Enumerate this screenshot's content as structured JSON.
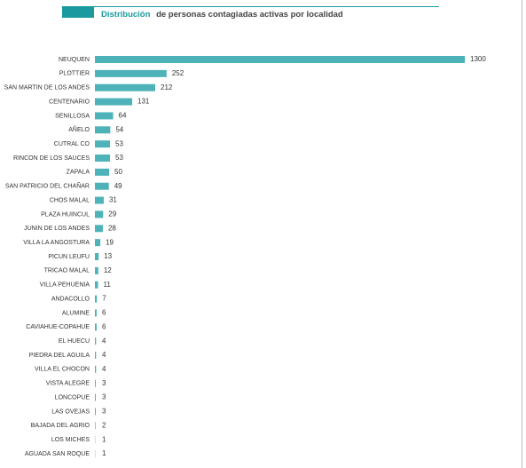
{
  "chart_data": {
    "type": "bar",
    "orientation": "horizontal",
    "title_highlight": "Distribución",
    "title": "de personas contagiadas activas por localidad",
    "categories": [
      "NEUQUEN",
      "PLOTTIER",
      "SAN MARTIN DE LOS ANDES",
      "CENTENARIO",
      "SENILLOSA",
      "AÑELO",
      "CUTRAL CO",
      "RINCON DE LOS SAUCES",
      "ZAPALA",
      "SAN PATRICIO DEL CHAÑAR",
      "CHOS MALAL",
      "PLAZA HUINCUL",
      "JUNIN DE LOS ANDES",
      "VILLA LA ANGOSTURA",
      "PICUN LEUFU",
      "TRICAO MALAL",
      "VILLA PEHUENIA",
      "ANDACOLLO",
      "ALUMINE",
      "CAVIAHUE-COPAHUE",
      "EL HUECU",
      "PIEDRA DEL AGUILA",
      "VILLA EL CHOCON",
      "VISTA ALEGRE",
      "LONCOPUE",
      "LAS OVEJAS",
      "BAJADA DEL AGRIO",
      "LOS MICHES",
      "AGUADA SAN ROQUE"
    ],
    "values": [
      1300,
      252,
      212,
      131,
      64,
      54,
      53,
      53,
      50,
      49,
      31,
      29,
      28,
      19,
      13,
      12,
      11,
      7,
      6,
      6,
      4,
      4,
      4,
      3,
      3,
      3,
      2,
      1,
      1
    ],
    "color": "#4db3b8",
    "title_color": "#1a9a9e"
  }
}
